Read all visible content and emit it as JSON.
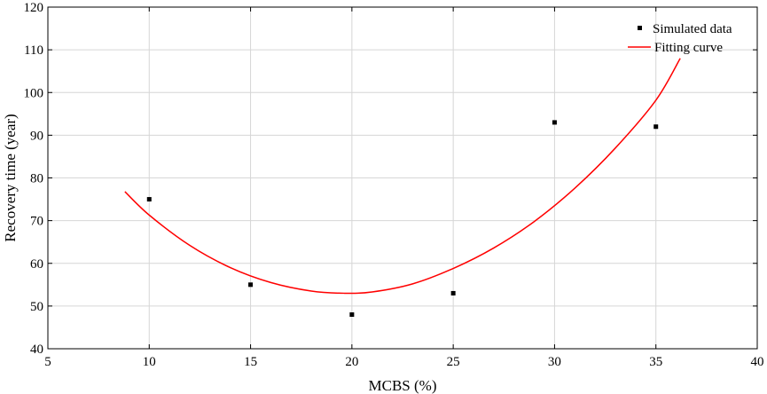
{
  "chart_data": {
    "type": "scatter",
    "xlabel": "MCBS (%)",
    "ylabel": "Recovery time (year)",
    "xlim": [
      5,
      40
    ],
    "ylim": [
      40,
      120
    ],
    "xticks": [
      5,
      10,
      15,
      20,
      25,
      30,
      35,
      40
    ],
    "yticks": [
      40,
      50,
      60,
      70,
      80,
      90,
      100,
      110,
      120
    ],
    "grid": true,
    "legend_position": "top-right",
    "series": [
      {
        "name": "Simulated data",
        "kind": "scatter",
        "color": "#000000",
        "marker": "square",
        "x": [
          10,
          15,
          20,
          25,
          30,
          35
        ],
        "y": [
          75,
          55,
          48,
          53,
          93,
          92
        ]
      },
      {
        "name": "Fitting curve",
        "kind": "line",
        "color": "#ff0000",
        "x": [
          8.8,
          10,
          12,
          14,
          16,
          18,
          19.6,
          21,
          23,
          25,
          27,
          29,
          31,
          33,
          35,
          36.2
        ],
        "y": [
          76.8,
          71.3,
          64.2,
          59.0,
          55.5,
          53.5,
          53.0,
          53.3,
          55.2,
          58.8,
          63.6,
          69.8,
          77.6,
          87.0,
          98.2,
          108.0
        ]
      }
    ]
  }
}
